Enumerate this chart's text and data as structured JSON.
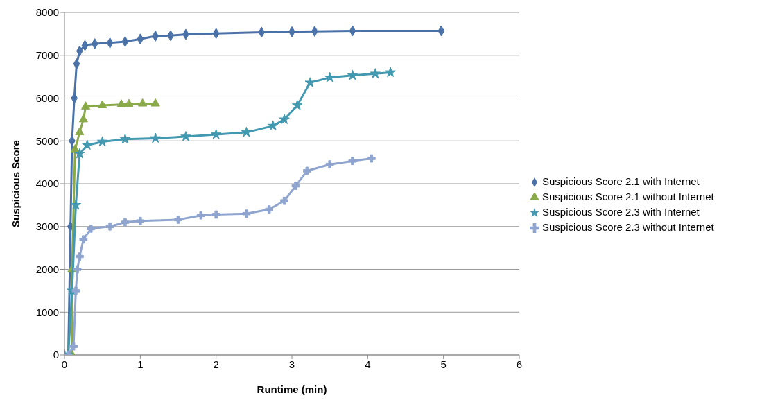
{
  "chart_data": {
    "type": "line",
    "xlabel": "Runtime (min)",
    "ylabel": "Suspicious Score",
    "xlim": [
      0,
      6
    ],
    "xticks": [
      0,
      1,
      2,
      3,
      4,
      5,
      6
    ],
    "ylim": [
      0,
      8000
    ],
    "yticks": [
      0,
      1000,
      2000,
      3000,
      4000,
      5000,
      6000,
      7000,
      8000
    ],
    "grid": "y",
    "legend": "right",
    "line_style": "solid",
    "series": [
      {
        "name": "Suspicious Score 2.1 with Internet",
        "color": "#4a72a8",
        "marker": "diamond",
        "x": [
          0.05,
          0.08,
          0.1,
          0.13,
          0.16,
          0.2,
          0.27,
          0.4,
          0.6,
          0.8,
          1.0,
          1.2,
          1.4,
          1.6,
          2.0,
          2.6,
          3.0,
          3.3,
          3.8,
          4.97
        ],
        "values": [
          0,
          3000,
          5000,
          6000,
          6800,
          7100,
          7230,
          7270,
          7290,
          7320,
          7380,
          7450,
          7460,
          7490,
          7510,
          7540,
          7550,
          7560,
          7570,
          7570
        ]
      },
      {
        "name": "Suspicious Score 2.1 without Internet",
        "color": "#8aaa4a",
        "marker": "triangle",
        "x": [
          0.1,
          0.1,
          0.14,
          0.2,
          0.25,
          0.28,
          0.5,
          0.75,
          0.85,
          1.03,
          1.2
        ],
        "values": [
          0,
          2000,
          4800,
          5200,
          5500,
          5800,
          5830,
          5850,
          5860,
          5870,
          5870
        ]
      },
      {
        "name": "Suspicious Score 2.3 with Internet",
        "color": "#4299b0",
        "marker": "star",
        "x": [
          0,
          0.05,
          0.1,
          0.15,
          0.2,
          0.3,
          0.5,
          0.8,
          1.2,
          1.6,
          2.0,
          2.4,
          2.75,
          2.9,
          3.07,
          3.24,
          3.5,
          3.8,
          4.1,
          4.3
        ],
        "values": [
          0,
          0,
          1500,
          3500,
          4700,
          4900,
          4980,
          5040,
          5060,
          5100,
          5150,
          5200,
          5350,
          5500,
          5830,
          6360,
          6480,
          6530,
          6570,
          6600
        ]
      },
      {
        "name": "Suspicious Score 2.3 without Internet",
        "color": "#8fa5cf",
        "marker": "cross",
        "x": [
          0.05,
          0.12,
          0.15,
          0.17,
          0.2,
          0.25,
          0.35,
          0.6,
          0.8,
          1.0,
          1.5,
          1.8,
          2.0,
          2.4,
          2.7,
          2.9,
          3.05,
          3.2,
          3.5,
          3.8,
          4.05
        ],
        "values": [
          0,
          200,
          1500,
          2000,
          2300,
          2700,
          2950,
          3000,
          3100,
          3130,
          3160,
          3260,
          3280,
          3300,
          3400,
          3600,
          3950,
          4300,
          4450,
          4530,
          4590
        ]
      }
    ]
  }
}
